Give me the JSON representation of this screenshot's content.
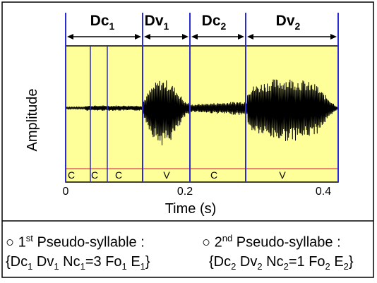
{
  "segments": [
    {
      "base": "Dc",
      "sub": "1"
    },
    {
      "base": "Dv",
      "sub": "1"
    },
    {
      "base": "Dc",
      "sub": "2"
    },
    {
      "base": "Dv",
      "sub": "2"
    }
  ],
  "labels": [
    "C",
    "C",
    "C",
    "V",
    "C",
    "V"
  ],
  "axes": {
    "ylabel": "Amplitude",
    "xlabel": "Time (s)",
    "ticks": [
      "0",
      "0.2",
      "0.4"
    ]
  },
  "captions": {
    "first": {
      "bullet": "○",
      "num": "1",
      "ord": "st",
      "text": " Pseudo-syllable :",
      "line2": {
        "open": "{Dc",
        "s1": "1",
        "mid1": " Dv",
        "s2": "1",
        "mid2": " Nc",
        "s3": "1",
        "mid3": "=3 Fo",
        "s4": "1",
        "mid4": " E",
        "s5": "1",
        "close": "}"
      }
    },
    "second": {
      "bullet": "○",
      "num": "2",
      "ord": "nd",
      "text": " Pseudo-syllabe :",
      "line2": {
        "open": "{Dc",
        "s1": "2",
        "mid1": " Dv",
        "s2": "2",
        "mid2": " Nc",
        "s3": "2",
        "mid3": "=1 Fo",
        "s4": "2",
        "mid4": " E",
        "s5": "2",
        "close": "}"
      }
    }
  },
  "colors": {
    "plot_bg": "#ffff99",
    "boundary": "#2b2bd6",
    "baseline": "#e06060",
    "text": "#000000"
  }
}
